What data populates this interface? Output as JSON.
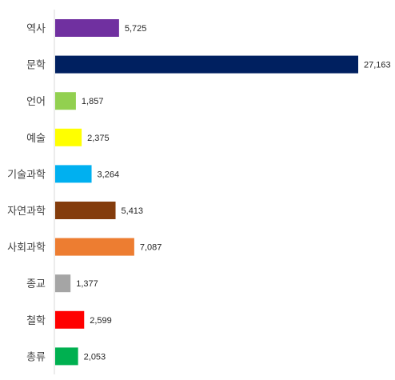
{
  "chart_data": {
    "type": "bar",
    "orientation": "horizontal",
    "categories": [
      "역사",
      "문학",
      "언어",
      "예술",
      "기술과학",
      "자연과학",
      "사회과학",
      "종교",
      "철학",
      "총류"
    ],
    "values": [
      5725,
      27163,
      1857,
      2375,
      3264,
      5413,
      7087,
      1377,
      2599,
      2053
    ],
    "value_labels": [
      "5,725",
      "27,163",
      "1,857",
      "2,375",
      "3,264",
      "5,413",
      "7,087",
      "1,377",
      "2,599",
      "2,053"
    ],
    "colors": [
      "#7030A0",
      "#002060",
      "#92D050",
      "#FFFF00",
      "#00B0F0",
      "#843C0C",
      "#ED7D31",
      "#A5A5A5",
      "#FF0000",
      "#00B050"
    ],
    "title": "",
    "xlabel": "",
    "ylabel": "",
    "xlim": [
      0,
      27163
    ],
    "grid": false,
    "legend": "none",
    "axis_color": "#D9D9D9"
  }
}
